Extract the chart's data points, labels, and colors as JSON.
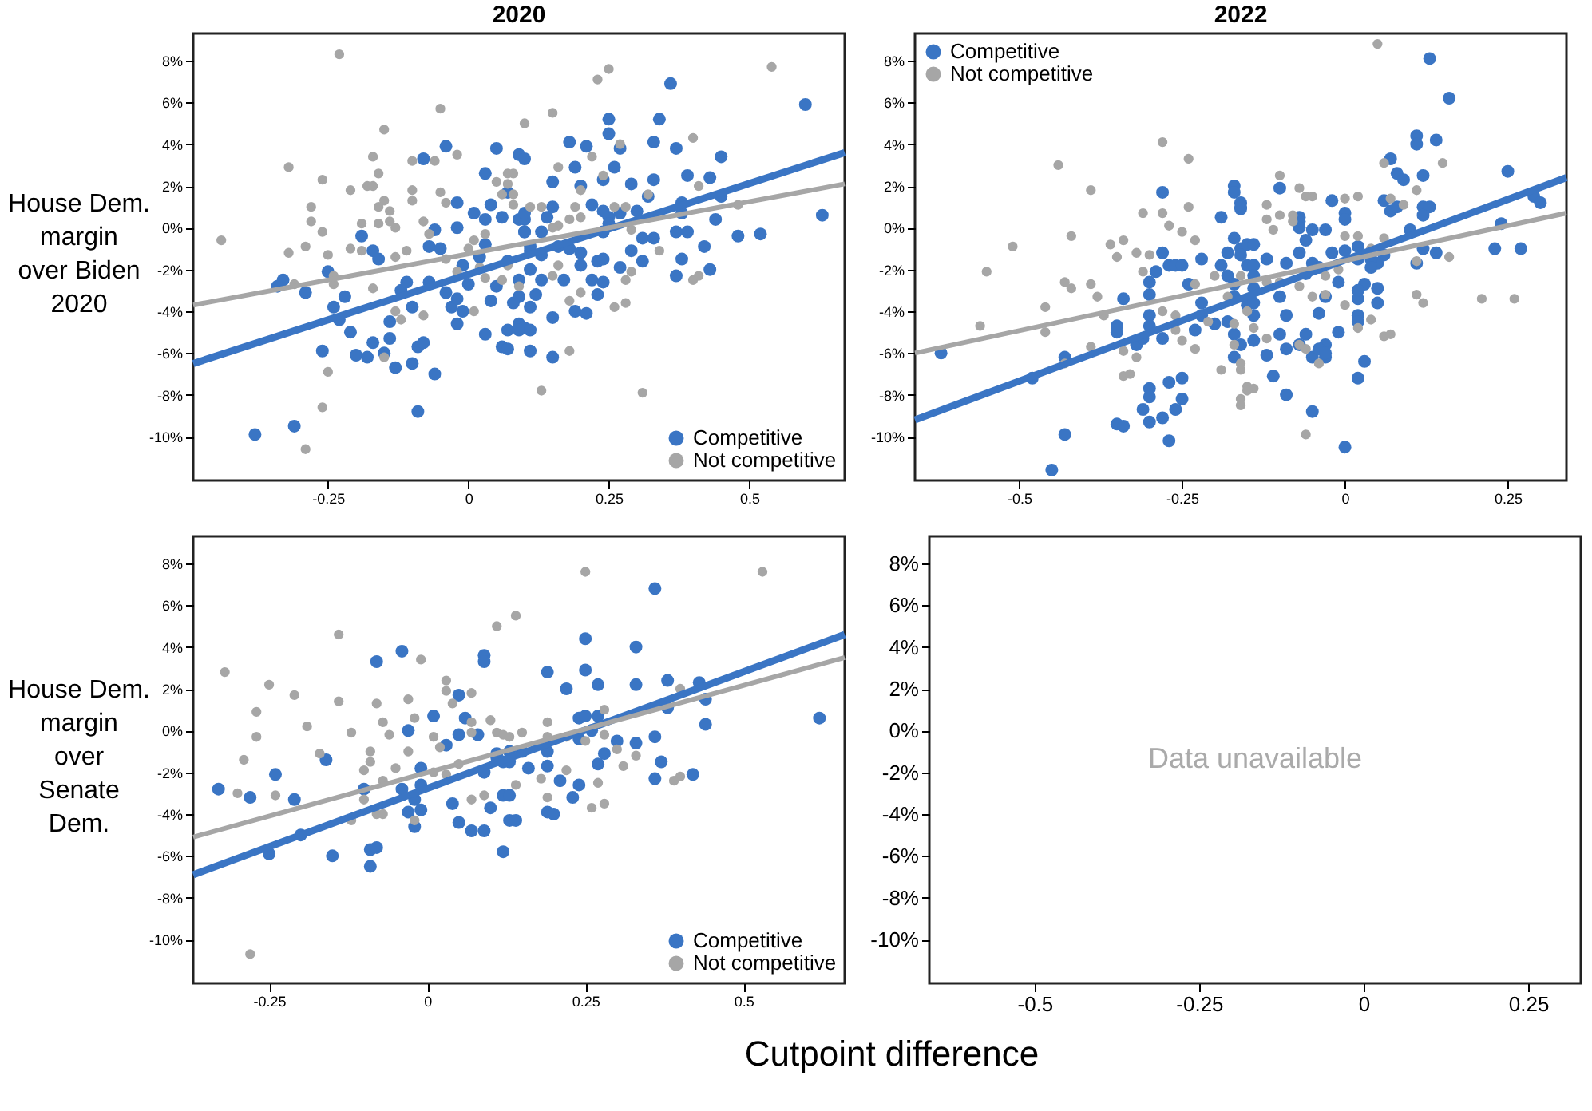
{
  "chart_data": [
    {
      "type": "scatter",
      "title": "2020",
      "ylabel": "House Dem. margin over Biden 2020",
      "xlim": [
        -0.49,
        0.67
      ],
      "ylim": [
        -12.1,
        9.3
      ],
      "xticks": [
        -0.25,
        0,
        0.25,
        0.5
      ],
      "yticks": [
        {
          "value": 8,
          "label": "8%"
        },
        {
          "value": 6,
          "label": "6%"
        },
        {
          "value": 4,
          "label": "4%"
        },
        {
          "value": 2,
          "label": "2%"
        },
        {
          "value": 0,
          "label": "0%"
        },
        {
          "value": -2,
          "label": "-2%"
        },
        {
          "value": -4,
          "label": "-4%"
        },
        {
          "value": -6,
          "label": "-6%"
        },
        {
          "value": -8,
          "label": "-8%"
        },
        {
          "value": -10,
          "label": "-10%"
        }
      ],
      "legend": "bottom right",
      "marker": "circle",
      "grid": false,
      "series": [
        {
          "name": "Competitive",
          "type": "scatter",
          "color": "#3a75c4",
          "x": [
            -0.38,
            -0.31,
            -0.33,
            -0.34,
            -0.29,
            -0.25,
            -0.24,
            -0.23,
            -0.22,
            -0.26,
            -0.21,
            -0.2,
            -0.18,
            -0.17,
            -0.15,
            -0.14,
            -0.14,
            -0.13,
            -0.1,
            -0.09,
            -0.08,
            -0.06,
            -0.09,
            -0.19,
            -0.17,
            -0.16,
            -0.12,
            -0.11,
            -0.1,
            -0.07,
            -0.07,
            -0.06,
            -0.05,
            -0.08,
            -0.04,
            -0.04,
            -0.03,
            -0.02,
            -0.02,
            -0.02,
            -0.01,
            -0.02,
            -0.01,
            0.0,
            0.01,
            0.03,
            0.02,
            0.03,
            0.03,
            0.04,
            0.06,
            0.07,
            0.09,
            0.05,
            0.04,
            0.05,
            0.09,
            0.06,
            0.03,
            0.07,
            0.09,
            0.11,
            0.1,
            0.09,
            0.1,
            0.1,
            0.1,
            0.11,
            0.09,
            0.36,
            0.6,
            0.63,
            0.25,
            0.25,
            0.34,
            0.18,
            0.21,
            0.27,
            0.33,
            0.37,
            0.45,
            0.19,
            0.26,
            0.15,
            0.2,
            0.24,
            0.29,
            0.33,
            0.32,
            0.39,
            0.43,
            0.45,
            0.38,
            0.38,
            0.44,
            0.48,
            0.52,
            0.37,
            0.39,
            0.42,
            0.38,
            0.43,
            0.37,
            0.31,
            0.33,
            0.31,
            0.22,
            0.24,
            0.25,
            0.27,
            0.3,
            0.24,
            0.25,
            0.15,
            0.14,
            0.1,
            0.13,
            0.1,
            0.11,
            0.13,
            0.16,
            0.18,
            0.2,
            0.2,
            0.23,
            0.24,
            0.27,
            0.29,
            0.17,
            0.22,
            0.24,
            0.23,
            0.13,
            0.12,
            0.11,
            0.08,
            0.19,
            0.21,
            0.15,
            0.07,
            0.09,
            0.11,
            0.07,
            0.11,
            0.15
          ],
          "values": [
            -9.9,
            -9.5,
            -2.5,
            -2.8,
            -3.1,
            -2.1,
            -3.8,
            -4.4,
            -3.3,
            -5.9,
            -5.0,
            -6.1,
            -6.2,
            -5.5,
            -6.0,
            -5.3,
            -4.5,
            -6.7,
            -6.5,
            -5.7,
            -5.5,
            -7.0,
            -8.8,
            -0.4,
            -1.1,
            -1.5,
            -3.0,
            -2.6,
            -3.8,
            -2.6,
            -0.9,
            -0.1,
            -1.0,
            3.3,
            3.9,
            -3.1,
            -3.8,
            -4.6,
            1.2,
            0.0,
            -1.8,
            -3.4,
            -4.0,
            -2.7,
            0.7,
            0.4,
            -1.4,
            -0.8,
            2.6,
            1.1,
            0.5,
            1.7,
            0.4,
            3.8,
            -3.5,
            -2.8,
            -4.6,
            -5.7,
            -5.1,
            -1.6,
            -2.5,
            -2.0,
            -4.8,
            3.5,
            3.3,
            0.4,
            -0.2,
            -0.9,
            -3.3,
            6.9,
            5.9,
            0.6,
            5.2,
            4.5,
            5.2,
            4.1,
            3.9,
            3.8,
            4.1,
            3.8,
            3.4,
            2.9,
            2.9,
            2.2,
            2.0,
            2.3,
            2.1,
            2.3,
            1.5,
            2.5,
            2.4,
            1.5,
            1.2,
            0.7,
            0.4,
            -0.4,
            -0.3,
            -0.2,
            -0.2,
            -0.9,
            -1.5,
            -2.0,
            -2.3,
            -0.5,
            -0.5,
            -1.6,
            1.1,
            0.8,
            0.5,
            0.7,
            0.8,
            -0.2,
            0.2,
            1.0,
            0.5,
            0.7,
            -0.2,
            -0.2,
            -1.1,
            -1.3,
            -0.9,
            -1.0,
            -1.2,
            -1.8,
            -1.6,
            -1.5,
            -1.9,
            -1.1,
            -2.5,
            -2.5,
            -2.6,
            -3.2,
            -2.5,
            -3.2,
            -3.8,
            -3.6,
            -4.0,
            -4.1,
            -4.3,
            -4.9,
            -4.9,
            -4.9,
            -5.8,
            -5.9,
            -6.2
          ]
        },
        {
          "name": "Not competitive",
          "type": "scatter",
          "color": "#a6a6a6",
          "x": [
            -0.23,
            -0.05,
            -0.15,
            -0.32,
            -0.26,
            -0.21,
            -0.17,
            -0.16,
            -0.18,
            -0.17,
            -0.28,
            -0.28,
            -0.26,
            -0.44,
            -0.32,
            -0.29,
            -0.25,
            -0.24,
            -0.24,
            -0.31,
            -0.21,
            -0.19,
            -0.19,
            -0.16,
            -0.15,
            -0.16,
            -0.14,
            -0.14,
            -0.13,
            -0.1,
            -0.1,
            -0.1,
            -0.06,
            -0.02,
            -0.05,
            -0.04,
            -0.13,
            -0.11,
            -0.08,
            -0.07,
            -0.17,
            -0.13,
            -0.08,
            -0.12,
            -0.15,
            -0.25,
            -0.26,
            -0.29,
            -0.04,
            0.0,
            -0.02,
            0.02,
            0.01,
            0.01,
            0.03,
            0.05,
            0.08,
            0.06,
            0.08,
            0.03,
            0.06,
            0.1,
            0.23,
            0.25,
            0.54,
            0.15,
            0.4,
            0.07,
            0.07,
            0.08,
            0.16,
            0.2,
            0.22,
            0.24,
            0.27,
            0.32,
            0.41,
            0.48,
            0.19,
            0.18,
            0.2,
            0.16,
            0.15,
            0.13,
            0.11,
            0.26,
            0.28,
            0.29,
            0.34,
            0.29,
            0.28,
            0.18,
            0.2,
            0.26,
            0.28,
            0.16,
            0.15,
            0.09,
            0.07,
            0.4,
            0.41,
            0.18,
            0.13,
            0.31
          ],
          "values": [
            8.3,
            5.7,
            4.7,
            2.9,
            2.3,
            1.8,
            3.4,
            2.6,
            2.0,
            2.0,
            1.0,
            0.3,
            -0.2,
            -0.6,
            -1.2,
            -0.9,
            -1.3,
            -2.7,
            -2.3,
            -2.7,
            -1.0,
            -1.1,
            0.2,
            0.2,
            1.3,
            1.0,
            0.8,
            0.3,
            0.0,
            1.8,
            1.3,
            3.2,
            3.2,
            3.5,
            1.7,
            1.2,
            -1.4,
            -1.1,
            0.3,
            -0.3,
            -2.9,
            -4.0,
            -4.2,
            -4.4,
            -6.2,
            -6.9,
            -8.6,
            -10.6,
            -1.5,
            -1.0,
            -2.1,
            -1.9,
            -4.0,
            -0.6,
            -0.3,
            2.2,
            2.6,
            1.6,
            1.1,
            -2.4,
            -2.5,
            5.0,
            7.1,
            7.6,
            7.7,
            5.5,
            4.3,
            2.6,
            2.1,
            1.6,
            2.9,
            1.8,
            3.4,
            2.5,
            4.0,
            1.6,
            2.0,
            1.1,
            1.0,
            0.4,
            0.5,
            0.1,
            0.0,
            1.0,
            1.0,
            1.0,
            1.0,
            -0.1,
            -1.1,
            -2.1,
            -2.5,
            -3.5,
            -3.1,
            -3.8,
            -3.6,
            -1.8,
            -2.3,
            -2.8,
            -1.8,
            -2.5,
            -2.3,
            -5.9,
            -7.8,
            -7.9
          ]
        },
        {
          "type": "line",
          "marker": "none",
          "color": "#3a75c4",
          "x": [
            -0.49,
            0.67
          ],
          "values": [
            -6.5,
            3.6
          ]
        },
        {
          "type": "line",
          "marker": "none",
          "color": "#a6a6a6",
          "x": [
            -0.49,
            0.67
          ],
          "values": [
            -3.7,
            2.1
          ]
        }
      ]
    },
    {
      "type": "scatter",
      "title": "2022",
      "xlim": [
        -0.66,
        0.34
      ],
      "ylim": [
        -12.1,
        9.3
      ],
      "xticks": [
        -0.5,
        -0.25,
        0,
        0.25
      ],
      "yticks": [
        {
          "value": 8,
          "label": "8%"
        },
        {
          "value": 6,
          "label": "6%"
        },
        {
          "value": 4,
          "label": "4%"
        },
        {
          "value": 2,
          "label": "2%"
        },
        {
          "value": 0,
          "label": "0%"
        },
        {
          "value": -2,
          "label": "-2%"
        },
        {
          "value": -4,
          "label": "-4%"
        },
        {
          "value": -6,
          "label": "-6%"
        },
        {
          "value": -8,
          "label": "-8%"
        },
        {
          "value": -10,
          "label": "-10%"
        }
      ],
      "legend": "top left",
      "marker": "circle",
      "grid": false,
      "series": [
        {
          "name": "Competitive",
          "type": "scatter",
          "color": "#3a75c4",
          "x": [
            -0.62,
            -0.48,
            -0.43,
            -0.43,
            -0.45,
            -0.34,
            -0.35,
            -0.35,
            -0.32,
            -0.3,
            -0.3,
            -0.31,
            -0.35,
            -0.34,
            -0.3,
            -0.28,
            -0.27,
            -0.25,
            -0.25,
            -0.26,
            -0.27,
            -0.28,
            -0.28,
            -0.3,
            -0.3,
            -0.29,
            -0.27,
            -0.26,
            -0.25,
            -0.3,
            -0.3,
            -0.28,
            -0.31,
            -0.24,
            -0.23,
            -0.22,
            -0.22,
            -0.22,
            -0.2,
            -0.18,
            -0.17,
            -0.16,
            -0.17,
            -0.19,
            -0.17,
            -0.16,
            -0.16,
            -0.17,
            -0.18,
            -0.16,
            -0.19,
            -0.18,
            -0.17,
            -0.15,
            -0.15,
            -0.15,
            0.13,
            0.16,
            0.11,
            0.11,
            0.14,
            0.07,
            0.08,
            0.09,
            0.12,
            0.25,
            0.29,
            0.3,
            0.06,
            0.07,
            0.08,
            0.12,
            0.13,
            0.12,
            0.1,
            0.24,
            0.23,
            0.27,
            0.12,
            0.11,
            0.14,
            0.06,
            0.05,
            0.05,
            0.05,
            0.03,
            0.02,
            0.02,
            0.02,
            0.02,
            0.03,
            0.02,
            0.0,
            -0.05,
            -0.01,
            -0.03,
            -0.03,
            -0.05,
            -0.04,
            -0.01,
            -0.03,
            0.02,
            0.0,
            -0.02,
            0.02,
            0.04,
            0.04,
            -0.02,
            0.0,
            0.0,
            -0.03,
            -0.05,
            -0.07,
            -0.07,
            -0.07,
            -0.1,
            -0.06,
            -0.09,
            -0.05,
            -0.04,
            -0.07,
            -0.06,
            -0.1,
            -0.09,
            -0.12,
            -0.14,
            -0.14,
            -0.14,
            -0.16,
            -0.17,
            -0.16,
            -0.14,
            -0.14,
            -0.17,
            -0.14,
            -0.1,
            -0.09,
            -0.12,
            -0.11,
            -0.09,
            -0.14,
            -0.07,
            -0.06,
            -0.04,
            -0.03
          ],
          "values": [
            -6.0,
            -7.2,
            -6.2,
            -9.9,
            -11.6,
            -3.4,
            -4.7,
            -5.0,
            -5.6,
            -7.7,
            -8.1,
            -8.7,
            -9.4,
            -9.5,
            -9.3,
            -9.1,
            -7.4,
            -7.2,
            -8.2,
            -8.7,
            -10.2,
            1.7,
            -1.2,
            -2.6,
            -3.2,
            -2.1,
            -1.8,
            -1.8,
            -1.8,
            -4.2,
            -4.7,
            -5.3,
            -5.3,
            -2.7,
            -4.9,
            -3.6,
            -4.2,
            -1.5,
            -4.6,
            -4.5,
            -5.1,
            -5.6,
            -6.2,
            0.5,
            2.0,
            1.2,
            0.9,
            -0.5,
            -1.2,
            -1.0,
            -1.8,
            -2.3,
            -2.7,
            -0.8,
            -1.8,
            -3.7,
            8.1,
            6.2,
            4.4,
            4.0,
            4.2,
            3.3,
            2.6,
            2.3,
            2.5,
            2.7,
            1.5,
            1.2,
            1.3,
            0.8,
            1.0,
            1.0,
            1.0,
            0.6,
            -0.1,
            0.2,
            -1.0,
            -1.0,
            -1.0,
            -1.7,
            -1.2,
            -1.3,
            -1.7,
            -2.9,
            -3.6,
            -2.7,
            -3.4,
            -3.0,
            -4.2,
            -4.5,
            -6.4,
            -7.2,
            -10.5,
            -8.8,
            -5.0,
            -5.6,
            -6.2,
            -6.2,
            -4.1,
            -2.6,
            -3.3,
            -0.9,
            -1.1,
            -1.2,
            -1.5,
            -1.5,
            -1.9,
            1.3,
            0.7,
            0.4,
            -0.1,
            -0.1,
            0.3,
            0.5,
            0.0,
            1.9,
            -0.6,
            -1.7,
            -1.7,
            -1.9,
            -1.2,
            -2.2,
            -3.3,
            -4.2,
            -1.5,
            -0.8,
            -1.8,
            -2.3,
            -1.3,
            1.7,
            1.0,
            -2.9,
            -3.6,
            -3.3,
            -4.2,
            -5.1,
            -5.8,
            -6.1,
            -7.1,
            -8.0,
            -5.4,
            -5.6,
            -5.1,
            -5.8,
            -6.0
          ]
        },
        {
          "name": "Not competitive",
          "type": "scatter",
          "color": "#a6a6a6",
          "x": [
            -0.56,
            -0.55,
            -0.51,
            -0.46,
            -0.46,
            -0.43,
            -0.42,
            -0.44,
            -0.42,
            -0.43,
            -0.39,
            -0.39,
            -0.38,
            -0.39,
            -0.36,
            -0.35,
            -0.34,
            -0.37,
            -0.34,
            -0.33,
            -0.34,
            -0.32,
            -0.31,
            -0.31,
            -0.3,
            -0.32,
            -0.28,
            -0.24,
            -0.24,
            -0.28,
            -0.27,
            -0.25,
            -0.23,
            -0.26,
            -0.25,
            -0.23,
            -0.28,
            -0.26,
            -0.23,
            -0.21,
            -0.19,
            -0.16,
            -0.2,
            -0.18,
            -0.15,
            -0.16,
            -0.16,
            0.05,
            0.15,
            0.11,
            0.09,
            0.06,
            0.07,
            0.06,
            0.04,
            0.02,
            0.0,
            -0.1,
            -0.07,
            -0.05,
            -0.06,
            -0.12,
            -0.12,
            -0.11,
            -0.1,
            -0.08,
            -0.08,
            0.0,
            0.02,
            -0.03,
            -0.01,
            0.0,
            -0.03,
            -0.05,
            0.02,
            0.04,
            0.06,
            0.07,
            0.11,
            0.12,
            0.16,
            0.11,
            0.21,
            -0.04,
            -0.07,
            -0.06,
            -0.06,
            -0.14,
            -0.15,
            -0.16,
            -0.16,
            -0.15,
            -0.14,
            -0.12,
            -0.1,
            -0.12,
            -0.07,
            -0.17,
            -0.17,
            0.26
          ],
          "values": [
            -4.7,
            -2.1,
            -0.9,
            -3.8,
            -5.0,
            -2.6,
            -2.9,
            3.0,
            -0.4,
            -6.5,
            1.8,
            -2.7,
            -3.3,
            -5.7,
            -0.8,
            -1.4,
            -0.6,
            -4.2,
            -7.1,
            -7.0,
            -5.9,
            -6.2,
            0.7,
            -2.1,
            -1.3,
            -1.2,
            4.1,
            3.3,
            1.0,
            0.7,
            0.1,
            -0.2,
            -0.6,
            -4.9,
            -5.4,
            -5.8,
            -4.0,
            -4.2,
            -2.7,
            -4.5,
            -6.8,
            -8.2,
            -2.3,
            -3.3,
            -7.6,
            -6.8,
            -2.3,
            8.8,
            3.1,
            1.8,
            1.1,
            3.1,
            1.4,
            -0.5,
            -1.0,
            1.5,
            1.4,
            2.5,
            1.9,
            1.5,
            1.5,
            1.1,
            0.4,
            -0.1,
            0.6,
            0.6,
            0.3,
            -0.4,
            -0.4,
            -2.3,
            -2.0,
            -3.7,
            -3.2,
            -3.3,
            -4.8,
            -4.4,
            -5.2,
            -5.1,
            -3.2,
            -3.6,
            -1.4,
            -1.6,
            -3.4,
            -6.5,
            -5.6,
            -5.8,
            -9.9,
            -7.7,
            -7.8,
            -8.5,
            -6.5,
            -4.0,
            -4.8,
            -5.3,
            -2.6,
            -2.6,
            -2.8,
            -4.6,
            -5.6,
            -3.4
          ]
        },
        {
          "type": "line",
          "marker": "none",
          "color": "#3a75c4",
          "x": [
            -0.66,
            0.34
          ],
          "values": [
            -9.2,
            2.4
          ]
        },
        {
          "type": "line",
          "marker": "none",
          "color": "#a6a6a6",
          "x": [
            -0.66,
            0.34
          ],
          "values": [
            -6.0,
            0.7
          ]
        }
      ]
    },
    {
      "type": "scatter",
      "ylabel": "House Dem. margin over Senate Dem.",
      "xlabel": "Cutpoint difference",
      "xlim": [
        -0.37,
        0.66
      ],
      "ylim": [
        -12.1,
        9.3
      ],
      "xticks": [
        -0.25,
        0,
        0.25,
        0.5
      ],
      "yticks": [
        {
          "value": 8,
          "label": "8%"
        },
        {
          "value": 6,
          "label": "6%"
        },
        {
          "value": 4,
          "label": "4%"
        },
        {
          "value": 2,
          "label": "2%"
        },
        {
          "value": 0,
          "label": "0%"
        },
        {
          "value": -2,
          "label": "-2%"
        },
        {
          "value": -4,
          "label": "-4%"
        },
        {
          "value": -6,
          "label": "-6%"
        },
        {
          "value": -8,
          "label": "-8%"
        },
        {
          "value": -10,
          "label": "-10%"
        }
      ],
      "legend": "bottom right",
      "marker": "circle",
      "grid": false,
      "series": [
        {
          "name": "Competitive",
          "type": "scatter",
          "color": "#3a75c4",
          "x": [
            -0.33,
            -0.28,
            -0.24,
            -0.25,
            -0.21,
            -0.2,
            -0.16,
            -0.15,
            -0.09,
            -0.08,
            -0.09,
            -0.1,
            -0.08,
            -0.04,
            -0.04,
            -0.03,
            -0.02,
            -0.01,
            -0.02,
            -0.03,
            -0.01,
            -0.01,
            0.01,
            0.03,
            0.04,
            0.05,
            0.06,
            0.05,
            0.05,
            0.07,
            0.09,
            0.09,
            0.08,
            0.11,
            0.09,
            0.09,
            0.12,
            0.1,
            0.12,
            0.13,
            0.11,
            0.12,
            0.13,
            0.36,
            0.25,
            0.33,
            0.19,
            0.22,
            0.25,
            0.27,
            0.33,
            0.38,
            0.43,
            0.38,
            0.44,
            0.44,
            0.62,
            0.24,
            0.25,
            0.24,
            0.26,
            0.27,
            0.3,
            0.33,
            0.36,
            0.28,
            0.27,
            0.37,
            0.36,
            0.42,
            0.15,
            0.19,
            0.19,
            0.16,
            0.13,
            0.21,
            0.24,
            0.23,
            0.13,
            0.14,
            0.19,
            0.2
          ],
          "values": [
            -2.8,
            -3.2,
            -2.1,
            -5.9,
            -3.3,
            -5.0,
            -1.4,
            -6.0,
            -5.7,
            -5.6,
            -6.5,
            -2.8,
            3.3,
            3.8,
            -2.8,
            -3.9,
            -3.3,
            -3.8,
            -4.6,
            0.0,
            -1.8,
            -2.6,
            0.7,
            -0.7,
            -3.5,
            1.7,
            0.6,
            -0.2,
            -4.4,
            -4.8,
            3.6,
            3.3,
            -0.2,
            -1.1,
            -2.0,
            -4.8,
            -5.8,
            -3.7,
            -3.1,
            -4.3,
            -1.3,
            -1.5,
            -1.0,
            6.8,
            4.4,
            4.0,
            2.8,
            2.0,
            2.9,
            2.2,
            2.2,
            2.4,
            2.3,
            1.1,
            1.5,
            0.3,
            0.6,
            0.6,
            0.7,
            -0.4,
            0.0,
            0.7,
            -0.5,
            -0.6,
            -0.3,
            -1.1,
            -1.6,
            -1.5,
            -2.3,
            -2.1,
            -1.0,
            -1.0,
            -1.7,
            -1.8,
            -1.5,
            -2.4,
            -2.6,
            -3.2,
            -3.1,
            -4.3,
            -3.9,
            -4.0
          ]
        },
        {
          "name": "Not competitive",
          "type": "scatter",
          "color": "#a6a6a6",
          "x": [
            -0.32,
            -0.28,
            -0.25,
            -0.27,
            -0.27,
            -0.29,
            -0.3,
            -0.24,
            -0.21,
            -0.19,
            -0.17,
            -0.14,
            -0.14,
            -0.12,
            -0.09,
            -0.09,
            -0.1,
            -0.08,
            -0.07,
            -0.06,
            -0.05,
            -0.07,
            -0.1,
            -0.12,
            -0.08,
            -0.07,
            -0.03,
            -0.01,
            -0.02,
            -0.03,
            -0.02,
            0.01,
            0.02,
            0.01,
            0.03,
            0.03,
            0.03,
            0.04,
            0.07,
            0.07,
            0.07,
            0.09,
            0.05,
            0.11,
            0.14,
            0.07,
            0.1,
            0.11,
            0.12,
            0.25,
            0.53,
            0.4,
            0.28,
            0.28,
            0.25,
            0.22,
            0.19,
            0.19,
            0.15,
            0.13,
            0.3,
            0.31,
            0.33,
            0.18,
            0.19,
            0.22,
            0.27,
            0.26,
            0.28,
            0.39,
            0.4,
            0.14
          ],
          "values": [
            2.8,
            -10.7,
            2.2,
            0.9,
            -0.3,
            -1.4,
            -3.0,
            -3.1,
            1.7,
            0.2,
            -1.1,
            4.6,
            1.4,
            -0.1,
            -1.0,
            -1.5,
            -1.9,
            1.3,
            0.4,
            -0.2,
            -1.8,
            -2.4,
            -3.3,
            -4.3,
            -4.0,
            -4.0,
            1.5,
            3.4,
            0.6,
            -1.0,
            -4.3,
            -0.3,
            -0.8,
            -2.0,
            -2.1,
            2.4,
            1.9,
            1.3,
            1.8,
            -0.1,
            -3.3,
            -3.1,
            -1.6,
            5.0,
            5.5,
            0.4,
            0.5,
            -0.1,
            -0.2,
            7.6,
            7.6,
            2.0,
            1.0,
            -0.2,
            -0.5,
            -0.3,
            0.4,
            -0.3,
            -0.1,
            -0.3,
            -0.9,
            -1.7,
            -1.2,
            -2.3,
            -3.2,
            -1.9,
            -2.5,
            -3.7,
            -3.5,
            -2.4,
            -2.2,
            -2.6
          ]
        },
        {
          "type": "line",
          "marker": "none",
          "color": "#3a75c4",
          "x": [
            -0.37,
            0.66
          ],
          "values": [
            -6.9,
            4.6
          ]
        },
        {
          "type": "line",
          "marker": "none",
          "color": "#a6a6a6",
          "x": [
            -0.37,
            0.66
          ],
          "values": [
            -5.1,
            3.5
          ]
        }
      ]
    },
    {
      "type": "scatter",
      "xlim": [
        -0.66,
        0.33
      ],
      "ylim": [
        -12.1,
        9.3
      ],
      "xticks": [
        -0.5,
        -0.25,
        0,
        0.25
      ],
      "yticks": [
        {
          "value": 8,
          "label": "8%"
        },
        {
          "value": 6,
          "label": "6%"
        },
        {
          "value": 4,
          "label": "4%"
        },
        {
          "value": 2,
          "label": "2%"
        },
        {
          "value": 0,
          "label": "0%"
        },
        {
          "value": -2,
          "label": "-2%"
        },
        {
          "value": -4,
          "label": "-4%"
        },
        {
          "value": -6,
          "label": "-6%"
        },
        {
          "value": -8,
          "label": "-8%"
        },
        {
          "value": -10,
          "label": "-10%"
        }
      ],
      "annotations": [
        "Data unavailable"
      ]
    }
  ]
}
